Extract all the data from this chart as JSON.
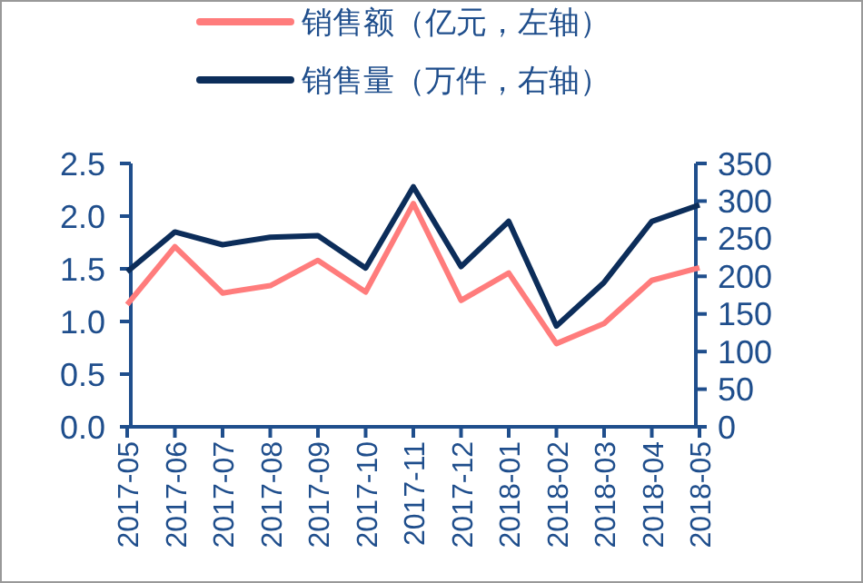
{
  "chart_data": {
    "type": "line",
    "categories": [
      "2017-05",
      "2017-06",
      "2017-07",
      "2017-08",
      "2017-09",
      "2017-10",
      "2017-11",
      "2017-12",
      "2018-01",
      "2018-02",
      "2018-03",
      "2018-04",
      "2018-05"
    ],
    "series": [
      {
        "name": "销售额（亿元，左轴）",
        "color": "#ff7c7c",
        "values": [
          1.16,
          1.71,
          1.27,
          1.34,
          1.58,
          1.28,
          2.12,
          1.2,
          1.46,
          0.79,
          0.98,
          1.39,
          1.51
        ]
      },
      {
        "name": "销售量（万件，右轴）",
        "color": "#0c2d5a",
        "axis": "y2",
        "values": [
          206,
          259,
          242,
          252,
          254,
          211,
          319,
          213,
          273,
          134,
          192,
          273,
          295
        ]
      }
    ],
    "ylim": [
      0,
      2.5
    ],
    "yticks": [
      {
        "value": 0,
        "label": "0.0"
      },
      {
        "value": 0.5,
        "label": "0.5"
      },
      {
        "value": 1,
        "label": "1.0"
      },
      {
        "value": 1.5,
        "label": "1.5"
      },
      {
        "value": 2,
        "label": "2.0"
      },
      {
        "value": 2.5,
        "label": "2.5"
      }
    ],
    "y2lim": [
      0,
      350
    ],
    "y2ticks": [
      0,
      50,
      100,
      150,
      200,
      250,
      300,
      350
    ],
    "grid": false,
    "legend": "top",
    "marker": "none",
    "line_style": "solid"
  }
}
